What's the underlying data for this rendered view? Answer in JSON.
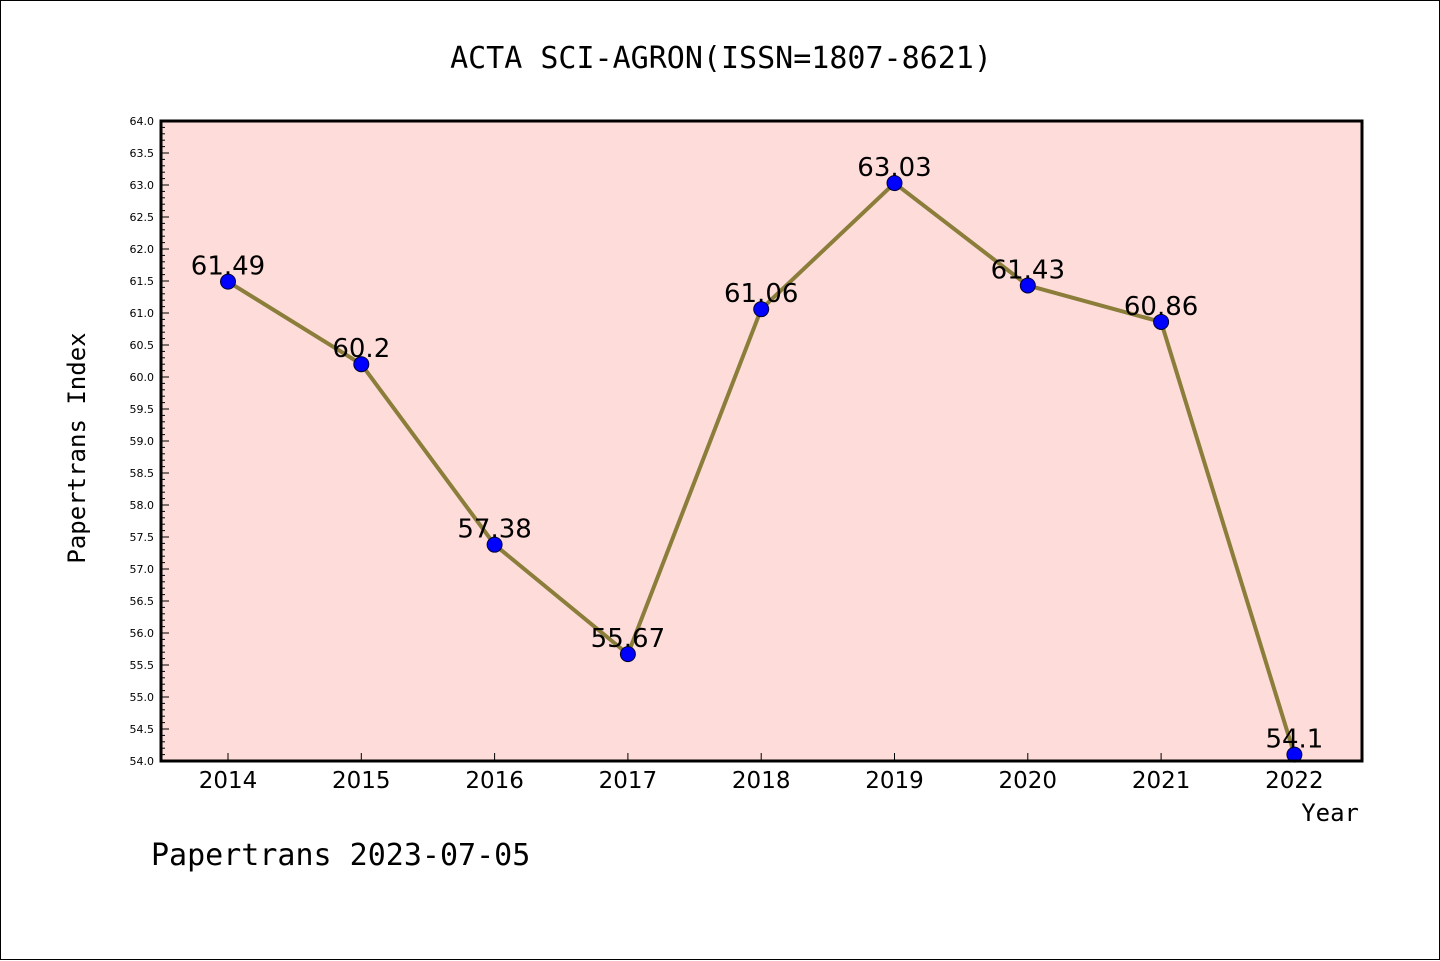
{
  "chart_data": {
    "type": "line",
    "title": "ACTA SCI-AGRON(ISSN=1807-8621)",
    "xlabel": "Year",
    "ylabel": "Papertrans Index",
    "footer": "Papertrans 2023-07-05",
    "categories": [
      "2014",
      "2015",
      "2016",
      "2017",
      "2018",
      "2019",
      "2020",
      "2021",
      "2022"
    ],
    "series": [
      {
        "values": [
          61.49,
          60.2,
          57.38,
          55.67,
          61.06,
          63.03,
          61.43,
          60.86,
          54.1
        ],
        "data_labels": [
          "61.49",
          "60.2",
          "57.38",
          "55.67",
          "61.06",
          "63.03",
          "61.43",
          "60.86",
          "54.1"
        ]
      }
    ],
    "ylim": [
      54.0,
      64.0
    ],
    "y_ticks": [
      "54.0",
      "54.5",
      "55.0",
      "55.5",
      "56.0",
      "56.5",
      "57.0",
      "57.5",
      "58.0",
      "58.5",
      "59.0",
      "59.5",
      "60.0",
      "60.5",
      "61.0",
      "61.5",
      "62.0",
      "62.5",
      "63.0",
      "63.5",
      "64.0"
    ],
    "grid": false,
    "legend": "none",
    "colors": {
      "plot_background": "#fedcd9",
      "line": "#8b7d3a",
      "marker": "#0000ff",
      "axes": "#000000"
    }
  }
}
